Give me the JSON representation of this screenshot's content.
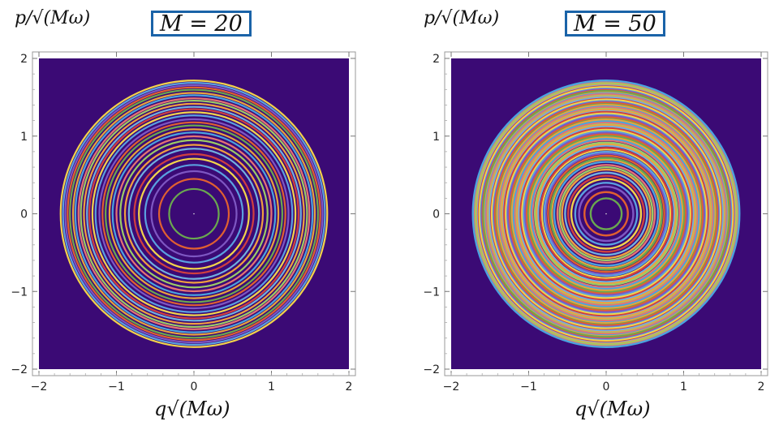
{
  "chart_data": [
    {
      "type": "line",
      "title": "M = 20",
      "xlabel": "q√(Mω)",
      "ylabel": "p/√(Mω)",
      "xlim": [
        -2,
        2
      ],
      "ylim": [
        -2,
        2
      ],
      "x_ticks": [
        "−2",
        "−1",
        "0",
        "1",
        "2"
      ],
      "y_ticks": [
        "−2",
        "−1",
        "0",
        "1",
        "2"
      ],
      "background_color": "#3b0a75",
      "grid": false,
      "curves": "concentric circles",
      "radii": [
        0.0,
        0.32,
        0.45,
        0.55,
        0.63,
        0.71,
        0.77,
        0.84,
        0.89,
        0.95,
        1.0,
        1.05,
        1.09,
        1.14,
        1.18,
        1.22,
        1.27,
        1.31,
        1.35,
        1.38,
        1.42,
        1.46,
        1.49,
        1.53,
        1.56,
        1.6,
        1.63,
        1.66,
        1.69,
        1.72
      ]
    },
    {
      "type": "line",
      "title": "M = 50",
      "xlabel": "q√(Mω)",
      "ylabel": "p/√(Mω)",
      "xlim": [
        -2,
        2
      ],
      "ylim": [
        -2,
        2
      ],
      "x_ticks": [
        "−2",
        "−1",
        "0",
        "1",
        "2"
      ],
      "y_ticks": [
        "−2",
        "−1",
        "0",
        "1",
        "2"
      ],
      "background_color": "#3b0a75",
      "grid": false,
      "curves": "concentric circles",
      "radii": [
        0.0,
        0.2,
        0.28,
        0.35,
        0.4,
        0.45,
        0.49,
        0.53,
        0.57,
        0.6,
        0.63,
        0.67,
        0.7,
        0.72,
        0.75,
        0.78,
        0.8,
        0.83,
        0.85,
        0.88,
        0.9,
        0.92,
        0.95,
        0.97,
        0.99,
        1.01,
        1.03,
        1.05,
        1.07,
        1.09,
        1.11,
        1.13,
        1.15,
        1.17,
        1.18,
        1.2,
        1.22,
        1.24,
        1.25,
        1.27,
        1.29,
        1.3,
        1.32,
        1.34,
        1.35,
        1.37,
        1.38,
        1.4,
        1.41,
        1.43,
        1.44,
        1.46,
        1.47,
        1.48,
        1.5,
        1.51,
        1.53,
        1.54,
        1.55,
        1.57,
        1.58,
        1.59,
        1.61,
        1.62,
        1.63,
        1.64,
        1.66,
        1.67,
        1.68,
        1.69,
        1.71,
        1.72
      ]
    }
  ],
  "palette": [
    "#e8a33d",
    "#6aa84f",
    "#e06030",
    "#7e57c2",
    "#5aa0e0",
    "#f2d34a",
    "#d04040",
    "#70b0e0",
    "#f0a040",
    "#9ccc65",
    "#e57373",
    "#4aa3df"
  ]
}
